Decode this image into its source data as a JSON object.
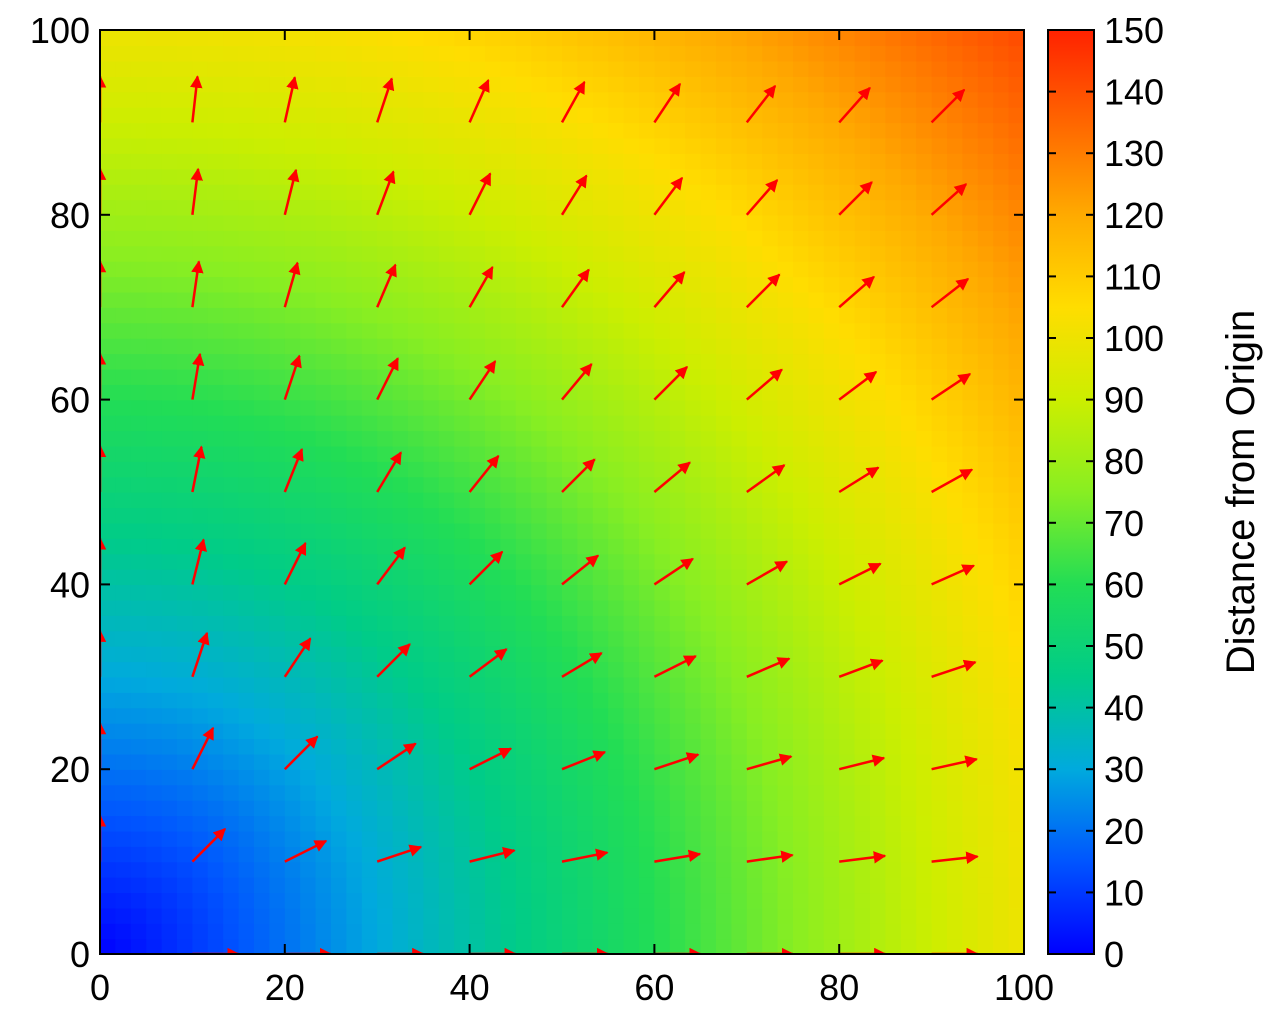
{
  "chart_data": {
    "type": "heatmap",
    "subtype": "vector-field-over-color-map",
    "title": "",
    "xlabel": "",
    "ylabel": "",
    "xlim": [
      0,
      100
    ],
    "ylim": [
      0,
      100
    ],
    "x_ticks": [
      "0",
      "20",
      "40",
      "60",
      "80",
      "100"
    ],
    "y_ticks": [
      "0",
      "20",
      "40",
      "60",
      "80",
      "100"
    ],
    "grid": false,
    "colorbar": {
      "label": "Distance from Origin",
      "range": [
        0,
        150
      ],
      "ticks": [
        "0",
        "10",
        "20",
        "30",
        "40",
        "50",
        "60",
        "70",
        "80",
        "90",
        "100",
        "110",
        "120",
        "130",
        "140",
        "150"
      ],
      "colormap": "rainbow (blue-cyan-green-yellow-orange-red)",
      "stops": [
        "#0000ff",
        "#0055ff",
        "#00aadd",
        "#00cc88",
        "#22dd55",
        "#88ee22",
        "#ccee00",
        "#ffdd00",
        "#ffaa00",
        "#ff6600",
        "#ff2200"
      ]
    },
    "color_field": "sqrt(x^2 + y^2)",
    "vector_field": {
      "description": "unit direction vectors pointing away from origin",
      "grid_x": [
        0,
        10,
        20,
        30,
        40,
        50,
        60,
        70,
        80,
        90
      ],
      "grid_y": [
        0,
        10,
        20,
        30,
        40,
        50,
        60,
        70,
        80,
        90
      ],
      "arrow_length": 5,
      "arrow_color": "#ff0000"
    }
  }
}
